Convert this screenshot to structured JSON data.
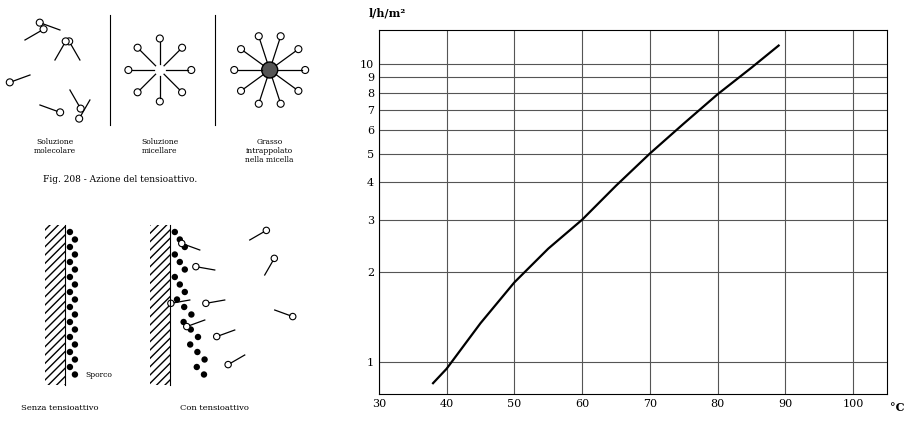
{
  "chart_data": {
    "type": "line",
    "x": [
      38,
      40,
      45,
      50,
      55,
      60,
      65,
      70,
      75,
      80,
      85,
      89
    ],
    "values": [
      0.85,
      0.95,
      1.35,
      1.85,
      2.4,
      3.0,
      3.9,
      5.0,
      6.3,
      7.9,
      9.7,
      11.5
    ],
    "color": "#000000",
    "y_label": "l/h/m²",
    "x_label": "°C",
    "log": "y",
    "grid": true,
    "xlim": [
      30,
      105
    ],
    "xticks": [
      30,
      40,
      50,
      60,
      70,
      80,
      90,
      100
    ],
    "ylim": [
      0.78,
      13
    ],
    "yticks": [
      1,
      2,
      3,
      4,
      5,
      6,
      7,
      8,
      9,
      10
    ]
  },
  "diagram": {
    "panels_top": [
      "Soluzione\nmolecolare",
      "Soluzione\nmicellare",
      "Grasso\nintrappolato\nnella micella"
    ],
    "top_caption": "Fig. 208 - Azione del tensioattivo.",
    "dirt_label": "Sporco",
    "panels_bottom": [
      "Senza tensioattivo",
      "Con tensioattivo"
    ]
  }
}
